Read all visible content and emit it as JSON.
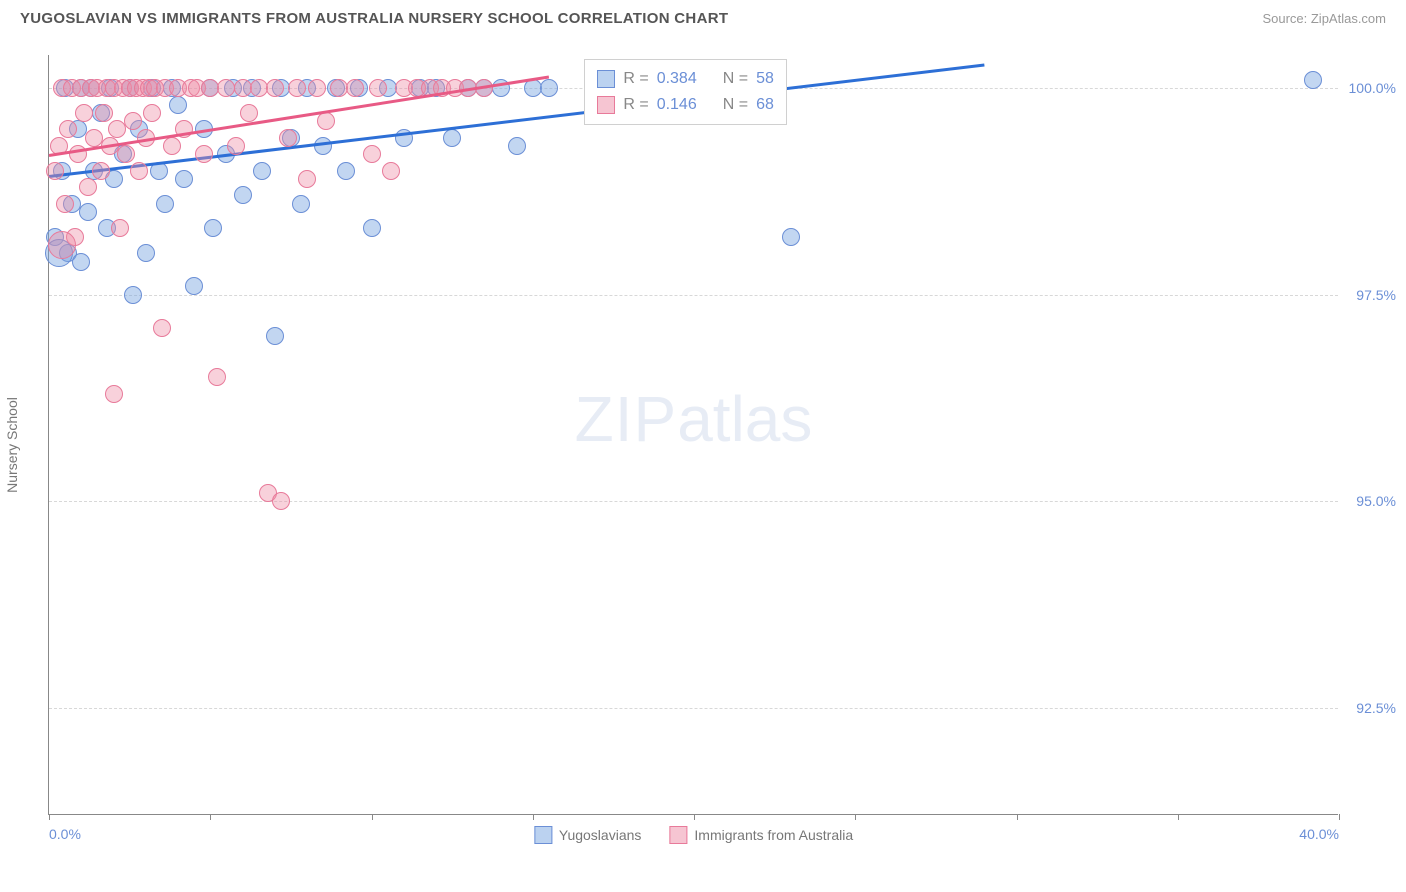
{
  "header": {
    "title": "YUGOSLAVIAN VS IMMIGRANTS FROM AUSTRALIA NURSERY SCHOOL CORRELATION CHART",
    "source_prefix": "Source: ",
    "source_name": "ZipAtlas.com"
  },
  "chart": {
    "type": "scatter",
    "y_axis_label": "Nursery School",
    "background_color": "#ffffff",
    "grid_color": "#d8d8d8",
    "axis_color": "#888888",
    "xlim": [
      0,
      40
    ],
    "ylim": [
      91.2,
      100.4
    ],
    "x_ticks": [
      0,
      5,
      10,
      15,
      20,
      25,
      30,
      35,
      40
    ],
    "x_tick_labels": {
      "0": "0.0%",
      "40": "40.0%"
    },
    "y_ticks": [
      92.5,
      95.0,
      97.5,
      100.0
    ],
    "y_tick_labels": [
      "92.5%",
      "95.0%",
      "97.5%",
      "100.0%"
    ],
    "marker_radius": 9,
    "marker_radius_large": 14,
    "watermark": "ZIPatlas",
    "series": [
      {
        "id": "blue",
        "label": "Yugoslavians",
        "color_fill": "rgba(120,165,225,0.45)",
        "color_stroke": "#6b8fd6",
        "trend_color": "#2d6fd6",
        "R": "0.384",
        "N": "58",
        "trend": {
          "x0": 0,
          "y0": 98.95,
          "x1": 29,
          "y1": 100.3
        },
        "points": [
          [
            0.2,
            98.2
          ],
          [
            0.4,
            99.0
          ],
          [
            0.5,
            100.0
          ],
          [
            0.6,
            98.0
          ],
          [
            0.7,
            98.6
          ],
          [
            0.9,
            99.5
          ],
          [
            1.0,
            97.9
          ],
          [
            1.0,
            100.0
          ],
          [
            1.2,
            98.5
          ],
          [
            1.3,
            100.0
          ],
          [
            1.4,
            99.0
          ],
          [
            1.6,
            99.7
          ],
          [
            1.8,
            98.3
          ],
          [
            1.9,
            100.0
          ],
          [
            2.0,
            98.9
          ],
          [
            2.3,
            99.2
          ],
          [
            2.5,
            100.0
          ],
          [
            2.6,
            97.5
          ],
          [
            2.8,
            99.5
          ],
          [
            3.0,
            98.0
          ],
          [
            3.2,
            100.0
          ],
          [
            3.4,
            99.0
          ],
          [
            3.6,
            98.6
          ],
          [
            3.8,
            100.0
          ],
          [
            4.0,
            99.8
          ],
          [
            4.2,
            98.9
          ],
          [
            4.5,
            97.6
          ],
          [
            4.8,
            99.5
          ],
          [
            5.0,
            100.0
          ],
          [
            5.1,
            98.3
          ],
          [
            5.5,
            99.2
          ],
          [
            5.7,
            100.0
          ],
          [
            6.0,
            98.7
          ],
          [
            6.3,
            100.0
          ],
          [
            6.6,
            99.0
          ],
          [
            7.0,
            97.0
          ],
          [
            7.2,
            100.0
          ],
          [
            7.5,
            99.4
          ],
          [
            7.8,
            98.6
          ],
          [
            8.0,
            100.0
          ],
          [
            8.5,
            99.3
          ],
          [
            8.9,
            100.0
          ],
          [
            9.2,
            99.0
          ],
          [
            9.6,
            100.0
          ],
          [
            10.0,
            98.3
          ],
          [
            10.5,
            100.0
          ],
          [
            11.0,
            99.4
          ],
          [
            11.5,
            100.0
          ],
          [
            12.0,
            100.0
          ],
          [
            12.5,
            99.4
          ],
          [
            13.0,
            100.0
          ],
          [
            13.5,
            100.0
          ],
          [
            14.0,
            100.0
          ],
          [
            14.5,
            99.3
          ],
          [
            15.0,
            100.0
          ],
          [
            15.5,
            100.0
          ],
          [
            23.0,
            98.2
          ],
          [
            39.2,
            100.1
          ]
        ],
        "large_points": [
          [
            0.3,
            98.0
          ]
        ]
      },
      {
        "id": "pink",
        "label": "Immigrants from Australia",
        "color_fill": "rgba(238,140,165,0.40)",
        "color_stroke": "#e87a9a",
        "trend_color": "#e85a85",
        "R": "0.146",
        "N": "68",
        "trend": {
          "x0": 0,
          "y0": 99.2,
          "x1": 15.5,
          "y1": 100.15
        },
        "points": [
          [
            0.2,
            99.0
          ],
          [
            0.3,
            99.3
          ],
          [
            0.4,
            100.0
          ],
          [
            0.5,
            98.6
          ],
          [
            0.6,
            99.5
          ],
          [
            0.7,
            100.0
          ],
          [
            0.8,
            98.2
          ],
          [
            0.9,
            99.2
          ],
          [
            1.0,
            100.0
          ],
          [
            1.1,
            99.7
          ],
          [
            1.2,
            98.8
          ],
          [
            1.3,
            100.0
          ],
          [
            1.4,
            99.4
          ],
          [
            1.5,
            100.0
          ],
          [
            1.6,
            99.0
          ],
          [
            1.7,
            99.7
          ],
          [
            1.8,
            100.0
          ],
          [
            1.9,
            99.3
          ],
          [
            2.0,
            100.0
          ],
          [
            2.1,
            99.5
          ],
          [
            2.2,
            98.3
          ],
          [
            2.3,
            100.0
          ],
          [
            2.4,
            99.2
          ],
          [
            2.5,
            100.0
          ],
          [
            2.6,
            99.6
          ],
          [
            2.7,
            100.0
          ],
          [
            2.8,
            99.0
          ],
          [
            2.9,
            100.0
          ],
          [
            3.0,
            99.4
          ],
          [
            3.1,
            100.0
          ],
          [
            3.2,
            99.7
          ],
          [
            3.3,
            100.0
          ],
          [
            3.5,
            97.1
          ],
          [
            3.6,
            100.0
          ],
          [
            3.8,
            99.3
          ],
          [
            4.0,
            100.0
          ],
          [
            4.2,
            99.5
          ],
          [
            4.4,
            100.0
          ],
          [
            4.6,
            100.0
          ],
          [
            4.8,
            99.2
          ],
          [
            5.0,
            100.0
          ],
          [
            5.2,
            96.5
          ],
          [
            5.5,
            100.0
          ],
          [
            5.8,
            99.3
          ],
          [
            6.0,
            100.0
          ],
          [
            6.2,
            99.7
          ],
          [
            6.5,
            100.0
          ],
          [
            6.8,
            95.1
          ],
          [
            7.0,
            100.0
          ],
          [
            7.2,
            95.0
          ],
          [
            7.4,
            99.4
          ],
          [
            7.7,
            100.0
          ],
          [
            8.0,
            98.9
          ],
          [
            8.3,
            100.0
          ],
          [
            8.6,
            99.6
          ],
          [
            9.0,
            100.0
          ],
          [
            9.5,
            100.0
          ],
          [
            10.0,
            99.2
          ],
          [
            10.2,
            100.0
          ],
          [
            10.6,
            99.0
          ],
          [
            11.0,
            100.0
          ],
          [
            11.4,
            100.0
          ],
          [
            11.8,
            100.0
          ],
          [
            12.2,
            100.0
          ],
          [
            12.6,
            100.0
          ],
          [
            13.0,
            100.0
          ],
          [
            13.5,
            100.0
          ],
          [
            2.0,
            96.3
          ]
        ],
        "large_points": [
          [
            0.4,
            98.1
          ]
        ]
      }
    ],
    "stats_box": {
      "left_pct": 41.5,
      "top_y": 100.35
    },
    "legend": {
      "items": [
        {
          "swatch": "blue",
          "label": "Yugoslavians"
        },
        {
          "swatch": "pink",
          "label": "Immigrants from Australia"
        }
      ]
    }
  },
  "labels": {
    "R_prefix": "R = ",
    "N_prefix": "N = "
  }
}
